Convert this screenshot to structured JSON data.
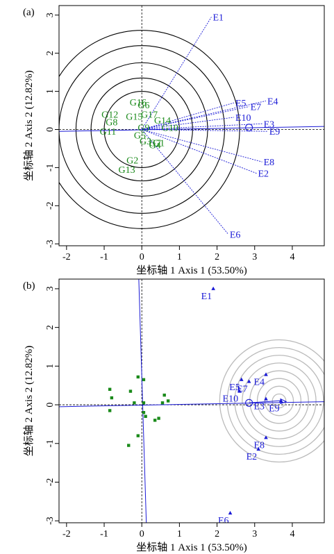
{
  "chart_data": [
    {
      "type": "scatter",
      "panel_label": "(a)",
      "xlabel": "坐标轴 1 Axis 1 (53.50%)",
      "ylabel": "坐标轴 2 Axis 2 (12.82%)",
      "xlim": [
        -2.2,
        4.85
      ],
      "ylim": [
        -3.05,
        3.25
      ],
      "xticks": [
        -2,
        -1,
        0,
        1,
        2,
        3,
        4
      ],
      "yticks": [
        -3,
        -2,
        -1,
        0,
        1,
        2,
        3
      ],
      "circle_center": [
        0,
        0
      ],
      "circle_radii": [
        1.0,
        1.35,
        1.75,
        2.2,
        2.6
      ],
      "average_environment_marker": [
        2.85,
        0.05
      ],
      "average_axis_line": [
        [
          -2.2,
          -0.05
        ],
        [
          4.85,
          0.08
        ]
      ],
      "environment_color": "#1a1ad6",
      "genotype_color": "#1a8a1a",
      "environments": [
        {
          "label": "E1",
          "x": 1.85,
          "y": 2.95
        },
        {
          "label": "E2",
          "x": 3.05,
          "y": -1.15
        },
        {
          "label": "E3",
          "x": 3.2,
          "y": 0.15
        },
        {
          "label": "E4",
          "x": 3.3,
          "y": 0.75
        },
        {
          "label": "E5",
          "x": 2.45,
          "y": 0.7
        },
        {
          "label": "E6",
          "x": 2.3,
          "y": -2.75
        },
        {
          "label": "E7",
          "x": 2.85,
          "y": 0.6
        },
        {
          "label": "E8",
          "x": 3.2,
          "y": -0.85
        },
        {
          "label": "E9",
          "x": 3.35,
          "y": -0.05
        },
        {
          "label": "E10",
          "x": 2.45,
          "y": 0.32
        }
      ],
      "genotypes": [
        {
          "label": "G1",
          "x": 0.45,
          "y": -0.35
        },
        {
          "label": "G2",
          "x": -0.25,
          "y": -0.8
        },
        {
          "label": "G3",
          "x": 0.1,
          "y": -0.3
        },
        {
          "label": "G4",
          "x": 0.35,
          "y": -0.4
        },
        {
          "label": "G5",
          "x": -0.05,
          "y": -0.15
        },
        {
          "label": "G6",
          "x": 0.05,
          "y": 0.65
        },
        {
          "label": "G7",
          "x": 0.35,
          "y": -0.35
        },
        {
          "label": "G8",
          "x": -0.8,
          "y": 0.2
        },
        {
          "label": "G9",
          "x": 0.05,
          "y": 0.05
        },
        {
          "label": "G10",
          "x": 0.75,
          "y": 0.05
        },
        {
          "label": "G11",
          "x": -0.9,
          "y": -0.05
        },
        {
          "label": "G12",
          "x": -0.85,
          "y": 0.4
        },
        {
          "label": "G13",
          "x": -0.4,
          "y": -1.05
        },
        {
          "label": "G14",
          "x": 0.55,
          "y": 0.25
        },
        {
          "label": "G15",
          "x": -0.2,
          "y": 0.35
        },
        {
          "label": "G16",
          "x": -0.1,
          "y": 0.72
        },
        {
          "label": "G17",
          "x": 0.2,
          "y": 0.4
        }
      ]
    },
    {
      "type": "scatter",
      "panel_label": "(b)",
      "xlabel": "坐标轴 1 Axis 1 (53.50%)",
      "ylabel": "坐标轴 2 Axis 2 (12.82%)",
      "xlim": [
        -2.2,
        4.85
      ],
      "ylim": [
        -3.05,
        3.25
      ],
      "xticks": [
        -2,
        -1,
        0,
        1,
        2,
        3,
        4
      ],
      "yticks": [
        -3,
        -2,
        -1,
        0,
        1,
        2,
        3
      ],
      "ideal_environment_center": [
        3.65,
        0.1
      ],
      "ideal_circle_radii": [
        0.18,
        0.38,
        0.58,
        0.78,
        0.98,
        1.18,
        1.38,
        1.58
      ],
      "average_environment_marker": [
        2.85,
        0.05
      ],
      "average_axis_line": [
        [
          -2.2,
          -0.05
        ],
        [
          4.85,
          0.08
        ]
      ],
      "environment_color": "#1a1ad6",
      "genotype_color": "#1a8a1a",
      "circle_color": "#bbbbbb",
      "environments": [
        {
          "label": "E1",
          "x": 1.9,
          "y": 3.0
        },
        {
          "label": "E2",
          "x": 3.1,
          "y": -1.15
        },
        {
          "label": "E3",
          "x": 3.3,
          "y": 0.15
        },
        {
          "label": "E4",
          "x": 3.3,
          "y": 0.78
        },
        {
          "label": "E5",
          "x": 2.65,
          "y": 0.65
        },
        {
          "label": "E6",
          "x": 2.35,
          "y": -2.8
        },
        {
          "label": "E7",
          "x": 2.85,
          "y": 0.6
        },
        {
          "label": "E8",
          "x": 3.3,
          "y": -0.85
        },
        {
          "label": "E9",
          "x": 3.7,
          "y": 0.1
        },
        {
          "label": "E10",
          "x": 2.6,
          "y": 0.35
        }
      ],
      "genotypes": [
        {
          "x": -0.85,
          "y": 0.4
        },
        {
          "x": -0.8,
          "y": 0.18
        },
        {
          "x": -0.85,
          "y": -0.15
        },
        {
          "x": -0.3,
          "y": 0.35
        },
        {
          "x": -0.1,
          "y": 0.72
        },
        {
          "x": 0.05,
          "y": 0.65
        },
        {
          "x": -0.2,
          "y": 0.05
        },
        {
          "x": 0.05,
          "y": 0.05
        },
        {
          "x": 0.05,
          "y": -0.2
        },
        {
          "x": 0.1,
          "y": -0.3
        },
        {
          "x": -0.1,
          "y": -0.8
        },
        {
          "x": -0.35,
          "y": -1.05
        },
        {
          "x": 0.35,
          "y": -0.4
        },
        {
          "x": 0.45,
          "y": -0.35
        },
        {
          "x": 0.55,
          "y": 0.05
        },
        {
          "x": 0.6,
          "y": 0.25
        },
        {
          "x": 0.7,
          "y": 0.1
        }
      ]
    }
  ]
}
